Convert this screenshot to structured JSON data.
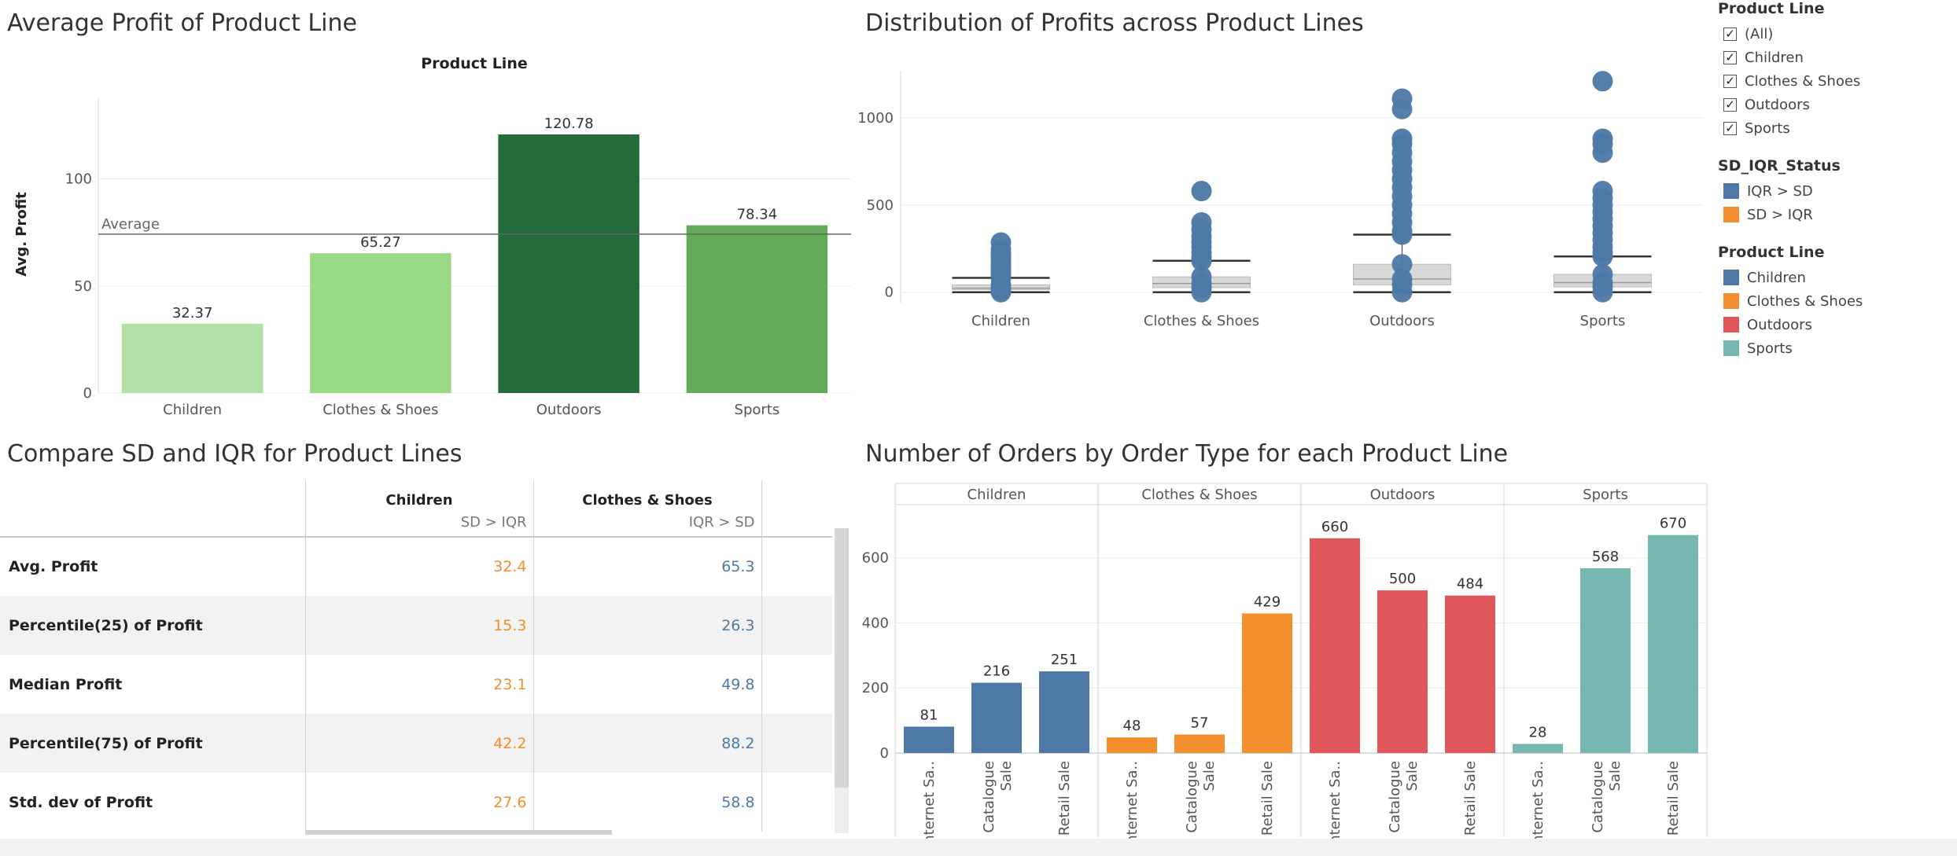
{
  "titles": {
    "avg_profit": "Average Profit of Product Line",
    "distribution": "Distribution of Profits across Product Lines",
    "compare": "Compare SD and IQR for Product Lines",
    "orders": "Number of Orders by Order Type for each Product Line"
  },
  "colors": {
    "iqr_gt_sd": "#4e79a7",
    "sd_gt_iqr": "#f28e2b",
    "children": "#4e79a7",
    "clothes": "#f28e2b",
    "outdoors": "#e15759",
    "sports": "#76b7b2"
  },
  "legend": {
    "filter_title": "Product Line",
    "filter_items": [
      "(All)",
      "Children",
      "Clothes & Shoes",
      "Outdoors",
      "Sports"
    ],
    "status_title": "SD_IQR_Status",
    "status_items": [
      {
        "label": "IQR > SD",
        "color": "#4e79a7"
      },
      {
        "label": "SD > IQR",
        "color": "#f28e2b"
      }
    ],
    "color_title": "Product Line",
    "color_items": [
      {
        "label": "Children",
        "color": "#4e79a7"
      },
      {
        "label": "Clothes & Shoes",
        "color": "#f28e2b"
      },
      {
        "label": "Outdoors",
        "color": "#e15759"
      },
      {
        "label": "Sports",
        "color": "#76b7b2"
      }
    ]
  },
  "chart_data": [
    {
      "type": "bar",
      "title": "Average Profit of Product Line",
      "header": "Product Line",
      "ylabel": "Avg. Profit",
      "categories": [
        "Children",
        "Clothes & Shoes",
        "Outdoors",
        "Sports"
      ],
      "values": [
        32.37,
        65.27,
        120.78,
        78.34
      ],
      "value_labels": [
        "32.37",
        "65.27",
        "120.78",
        "78.34"
      ],
      "bar_colors": [
        "#b3e0a6",
        "#9ad986",
        "#246b3c",
        "#62ab58"
      ],
      "ylim": [
        0,
        134
      ],
      "yticks": [
        0,
        50,
        100
      ],
      "reference_line": {
        "label": "Average",
        "value": 74.2
      }
    },
    {
      "type": "box",
      "title": "Distribution of Profits across Product Lines",
      "categories": [
        "Children",
        "Clothes & Shoes",
        "Outdoors",
        "Sports"
      ],
      "ylim": [
        -60,
        1270
      ],
      "yticks": [
        0,
        500,
        1000
      ],
      "boxes": [
        {
          "min": 0,
          "q1": 15,
          "median": 23,
          "q3": 42,
          "max": 82
        },
        {
          "min": 0,
          "q1": 26,
          "median": 50,
          "q3": 88,
          "max": 180
        },
        {
          "min": 0,
          "q1": 42,
          "median": 75,
          "q3": 160,
          "max": 330
        },
        {
          "min": 0,
          "q1": 30,
          "median": 55,
          "q3": 102,
          "max": 205
        }
      ],
      "outliers": [
        [
          100,
          120,
          140,
          160,
          180,
          200,
          220,
          245,
          285
        ],
        [
          200,
          230,
          260,
          290,
          320,
          360,
          400,
          580
        ],
        [
          350,
          400,
          450,
          500,
          550,
          600,
          650,
          700,
          750,
          800,
          850,
          880,
          1050,
          1110
        ],
        [
          230,
          260,
          300,
          340,
          380,
          420,
          460,
          500,
          540,
          580,
          800,
          850,
          880,
          1210
        ]
      ]
    },
    {
      "type": "table",
      "title": "Compare SD and IQR for Product Lines",
      "columns": [
        {
          "name": "Children",
          "status": "SD > IQR",
          "status_color": "#f28e2b"
        },
        {
          "name": "Clothes & Shoes",
          "status": "IQR > SD",
          "status_color": "#4e79a7"
        }
      ],
      "rows": [
        {
          "label": "Avg. Profit",
          "values": [
            "32.4",
            "65.3"
          ]
        },
        {
          "label": "Percentile(25) of Profit",
          "values": [
            "15.3",
            "26.3"
          ]
        },
        {
          "label": "Median Profit",
          "values": [
            "23.1",
            "49.8"
          ]
        },
        {
          "label": "Percentile(75) of Profit",
          "values": [
            "42.2",
            "88.2"
          ]
        },
        {
          "label": "Std. dev of Profit",
          "values": [
            "27.6",
            "58.8"
          ]
        }
      ]
    },
    {
      "type": "bar",
      "title": "Number of Orders by Order Type for each Product Line",
      "panels": [
        "Children",
        "Clothes & Shoes",
        "Outdoors",
        "Sports"
      ],
      "categories": [
        "Internet Sale",
        "Catalogue Sale",
        "Retail Sale"
      ],
      "category_labels": [
        "nternet Sa..",
        "Catalogue\nSale",
        "Retail Sale"
      ],
      "series": [
        {
          "name": "Children",
          "values": [
            81,
            216,
            251
          ],
          "color": "#4e79a7"
        },
        {
          "name": "Clothes & Shoes",
          "values": [
            48,
            57,
            429
          ],
          "color": "#f28e2b"
        },
        {
          "name": "Outdoors",
          "values": [
            660,
            500,
            484
          ],
          "color": "#e15759"
        },
        {
          "name": "Sports",
          "values": [
            28,
            568,
            670
          ],
          "color": "#76b7b2"
        }
      ],
      "ylim": [
        0,
        720
      ],
      "yticks": [
        0,
        200,
        400,
        600
      ]
    }
  ]
}
